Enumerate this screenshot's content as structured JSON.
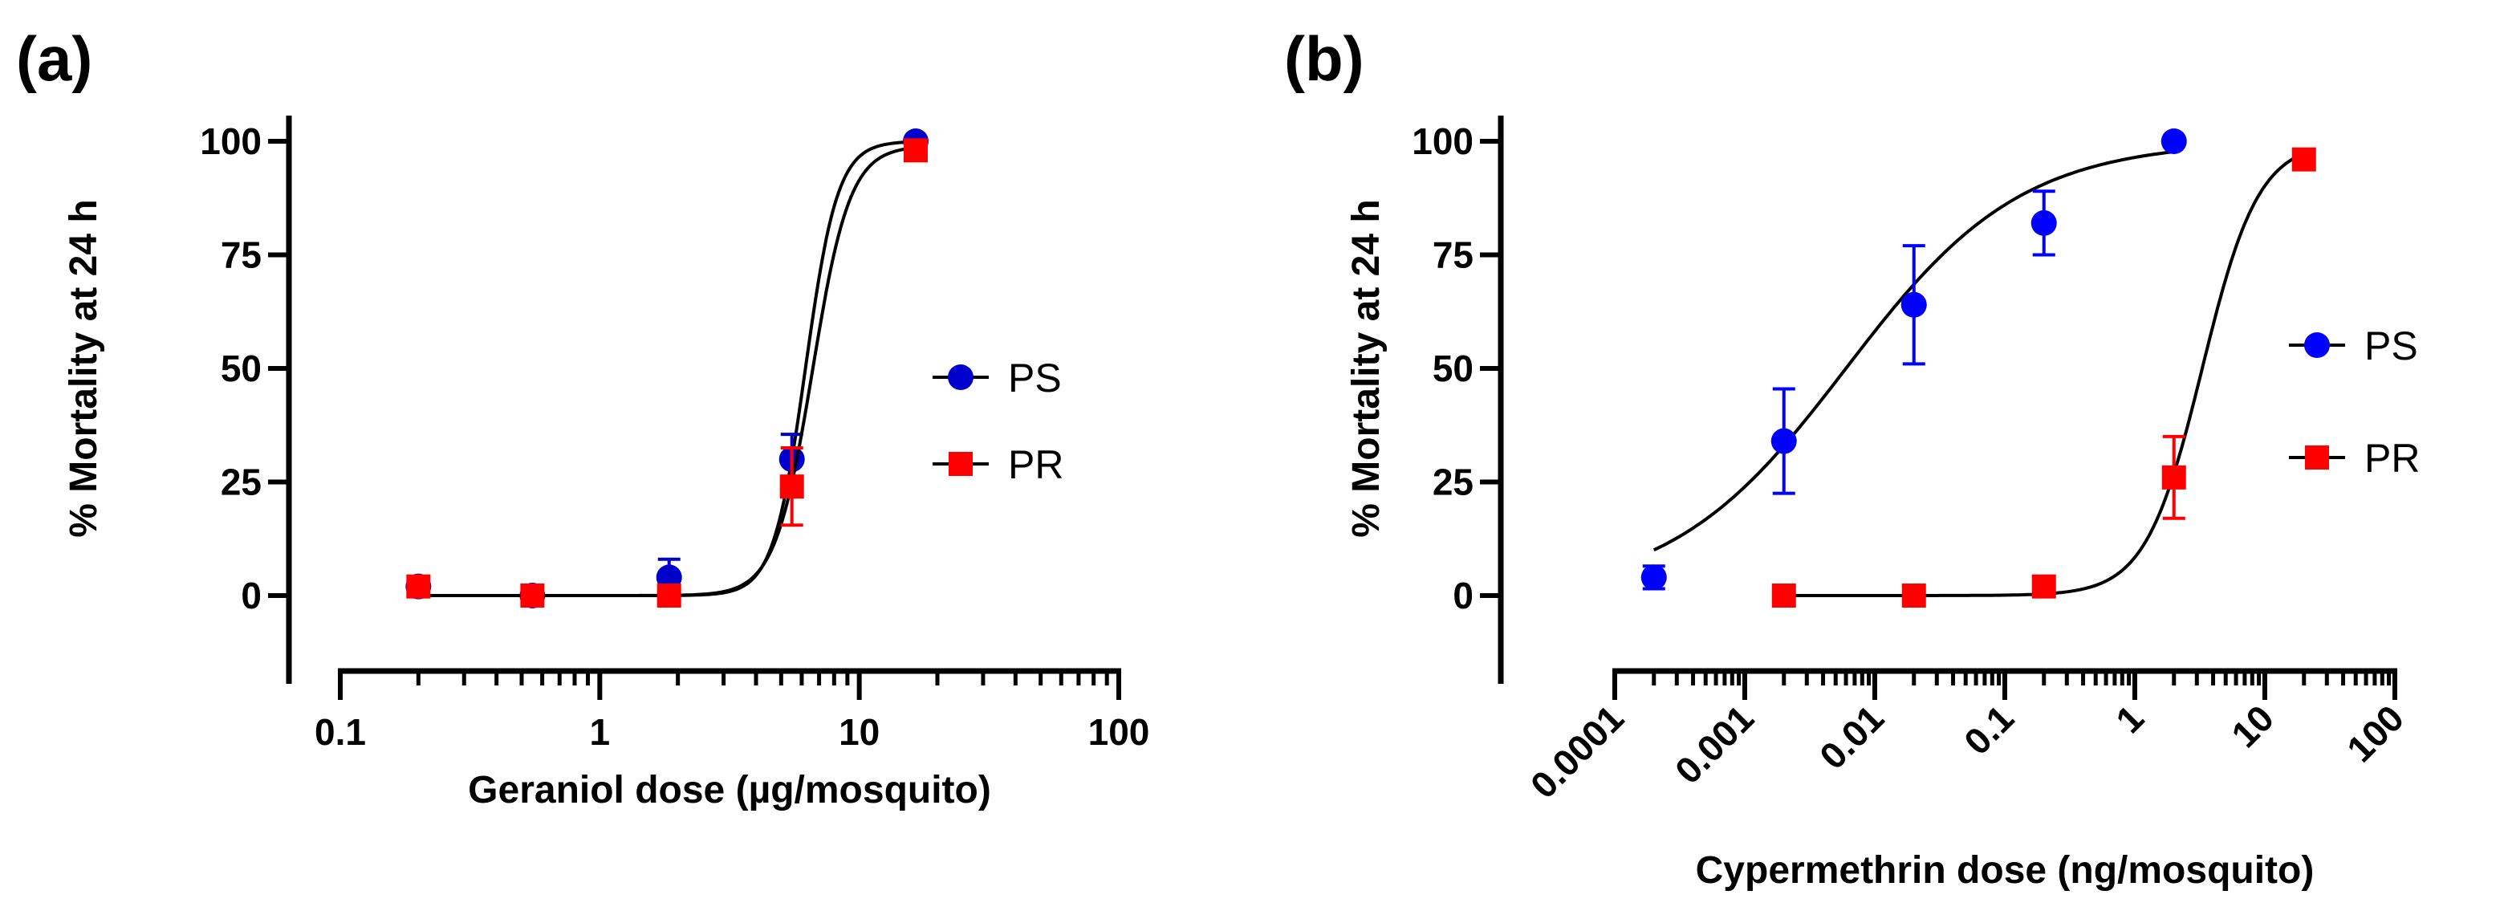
{
  "chart_data": [
    {
      "type": "scatter",
      "panel_label": "(a)",
      "title": "",
      "xlabel": "Geraniol dose (µg/mosquito)",
      "ylabel": "% Mortality at 24 h",
      "xscale": "log",
      "xlim": [
        0.1,
        100
      ],
      "ylim": [
        -8,
        105
      ],
      "xticks": [
        0.1,
        1,
        10,
        100
      ],
      "xtick_labels": [
        "0.1",
        "1",
        "10",
        "100"
      ],
      "xtick_rotation": 0,
      "yticks": [
        0,
        25,
        50,
        75,
        100
      ],
      "ytick_labels": [
        "0",
        "25",
        "50",
        "75",
        "100"
      ],
      "legend_position": "right",
      "series": [
        {
          "name": "PS",
          "color": "#0000cc",
          "marker": "circle",
          "x": [
            0.2,
            0.55,
            1.85,
            5.5,
            16.5
          ],
          "y": [
            2,
            0,
            4,
            30,
            100
          ],
          "err": [
            0,
            0,
            4,
            5.5,
            0
          ],
          "fit": {
            "ec50": 6.2,
            "hill": 7,
            "top": 100,
            "bottom": 0,
            "xrange": [
              0.2,
              16.5
            ]
          }
        },
        {
          "name": "PR",
          "color": "#ff0000",
          "marker": "square",
          "x": [
            0.2,
            0.55,
            1.85,
            5.5,
            16.5
          ],
          "y": [
            2,
            0,
            0,
            24,
            98
          ],
          "err": [
            0,
            0,
            0,
            8.5,
            0
          ],
          "fit": {
            "ec50": 6.6,
            "hill": 6,
            "top": 99,
            "bottom": 0,
            "xrange": [
              0.2,
              16.5
            ]
          }
        }
      ]
    },
    {
      "type": "scatter",
      "panel_label": "(b)",
      "title": "",
      "xlabel": "Cypermethrin dose (ng/mosquito)",
      "ylabel": "% Mortality at 24 h",
      "xscale": "log",
      "xlim": [
        0.0001,
        100
      ],
      "ylim": [
        -8,
        105
      ],
      "xticks": [
        0.0001,
        0.001,
        0.01,
        0.1,
        1,
        10,
        100
      ],
      "xtick_labels": [
        "0.0001",
        "0.001",
        "0.01",
        "0.1",
        "1",
        "10",
        "100"
      ],
      "xtick_rotation": -45,
      "yticks": [
        0,
        25,
        50,
        75,
        100
      ],
      "ytick_labels": [
        "0",
        "25",
        "50",
        "75",
        "100"
      ],
      "legend_position": "right",
      "series": [
        {
          "name": "PS",
          "color": "#0000ff",
          "marker": "circle",
          "x": [
            0.0002,
            0.002,
            0.02,
            0.2,
            2
          ],
          "y": [
            4,
            34,
            64,
            82,
            100
          ],
          "err": [
            2.5,
            11.5,
            13,
            7,
            0
          ],
          "fit": {
            "ec50": 0.006,
            "hill": 0.645,
            "top": 100,
            "bottom": 0,
            "xrange": [
              0.0002,
              2
            ]
          }
        },
        {
          "name": "PR",
          "color": "#ff0000",
          "marker": "square",
          "x": [
            0.002,
            0.02,
            0.2,
            2,
            20
          ],
          "y": [
            0,
            0,
            2,
            26,
            96
          ],
          "err": [
            0,
            0,
            0,
            9,
            0
          ],
          "fit": {
            "ec50": 3.3,
            "hill": 2,
            "top": 100,
            "bottom": 0,
            "xrange": [
              0.002,
              20
            ]
          }
        }
      ]
    }
  ]
}
